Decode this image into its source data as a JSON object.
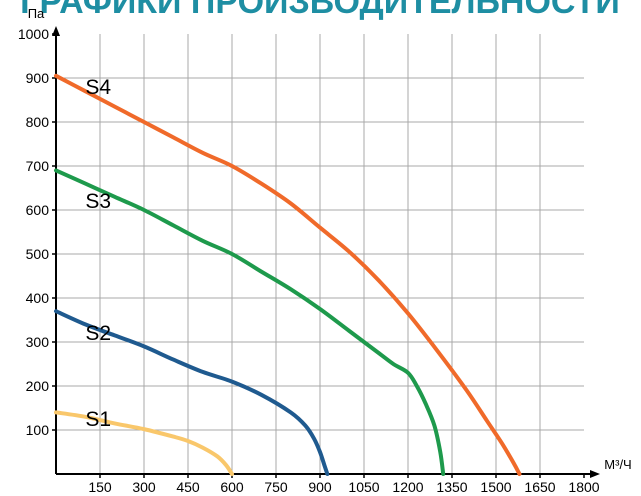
{
  "chart_data": {
    "type": "line",
    "title": "ГРАФИКИ ПРОИЗВОДИТЕЛЬНОСТИ",
    "xlabel": "М³/Ч",
    "ylabel": "Па",
    "xlim": [
      0,
      1800
    ],
    "ylim": [
      0,
      1000
    ],
    "x_ticks": [
      150,
      300,
      450,
      600,
      750,
      900,
      1050,
      1200,
      1350,
      1500,
      1650,
      1800
    ],
    "y_ticks": [
      100,
      200,
      300,
      400,
      500,
      600,
      700,
      800,
      900,
      1000
    ],
    "grid": true,
    "colors": {
      "S1": "#f9c76b",
      "S2": "#1f5a8f",
      "S3": "#1e9a4c",
      "S4": "#f06a2a",
      "grid": "#a8a8a8",
      "title": "#1e8ea3"
    },
    "series": [
      {
        "name": "S1",
        "points": [
          [
            0,
            140
          ],
          [
            100,
            130
          ],
          [
            200,
            115
          ],
          [
            300,
            102
          ],
          [
            400,
            85
          ],
          [
            450,
            75
          ],
          [
            500,
            60
          ],
          [
            550,
            40
          ],
          [
            580,
            20
          ],
          [
            600,
            0
          ]
        ]
      },
      {
        "name": "S2",
        "points": [
          [
            0,
            370
          ],
          [
            100,
            340
          ],
          [
            200,
            315
          ],
          [
            300,
            290
          ],
          [
            400,
            260
          ],
          [
            500,
            232
          ],
          [
            600,
            210
          ],
          [
            700,
            180
          ],
          [
            800,
            140
          ],
          [
            850,
            110
          ],
          [
            880,
            80
          ],
          [
            900,
            50
          ],
          [
            915,
            20
          ],
          [
            925,
            0
          ]
        ]
      },
      {
        "name": "S3",
        "points": [
          [
            0,
            690
          ],
          [
            100,
            660
          ],
          [
            200,
            630
          ],
          [
            300,
            600
          ],
          [
            400,
            565
          ],
          [
            500,
            530
          ],
          [
            600,
            500
          ],
          [
            700,
            460
          ],
          [
            800,
            420
          ],
          [
            900,
            375
          ],
          [
            1000,
            325
          ],
          [
            1100,
            275
          ],
          [
            1150,
            250
          ],
          [
            1200,
            230
          ],
          [
            1230,
            200
          ],
          [
            1260,
            160
          ],
          [
            1290,
            110
          ],
          [
            1310,
            50
          ],
          [
            1320,
            0
          ]
        ]
      },
      {
        "name": "S4",
        "points": [
          [
            0,
            905
          ],
          [
            100,
            870
          ],
          [
            200,
            835
          ],
          [
            300,
            800
          ],
          [
            400,
            765
          ],
          [
            500,
            730
          ],
          [
            600,
            700
          ],
          [
            700,
            660
          ],
          [
            800,
            615
          ],
          [
            900,
            560
          ],
          [
            1000,
            505
          ],
          [
            1100,
            440
          ],
          [
            1200,
            365
          ],
          [
            1300,
            280
          ],
          [
            1400,
            190
          ],
          [
            1470,
            120
          ],
          [
            1520,
            70
          ],
          [
            1560,
            25
          ],
          [
            1580,
            0
          ]
        ]
      }
    ]
  }
}
